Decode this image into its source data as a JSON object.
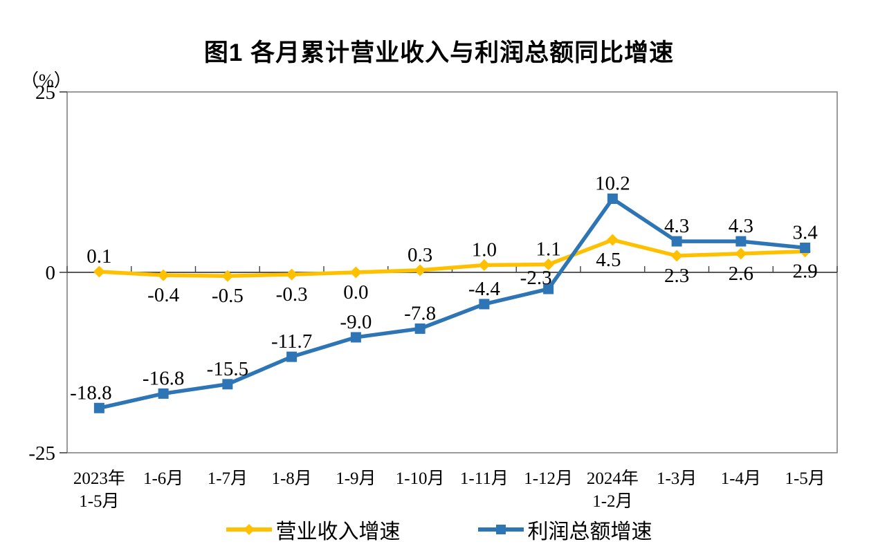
{
  "chart_data": {
    "type": "line",
    "title": "图1  各月累计营业收入与利润总额同比增速",
    "ylabel": "（%）",
    "ylim": [
      -25,
      25
    ],
    "yticks": [
      25,
      0,
      -25
    ],
    "grid": false,
    "legend_position": "bottom",
    "categories": [
      "2023年\n1-5月",
      "1-6月",
      "1-7月",
      "1-8月",
      "1-9月",
      "1-10月",
      "1-11月",
      "1-12月",
      "2024年\n1-2月",
      "1-3月",
      "1-4月",
      "1-5月"
    ],
    "series": [
      {
        "name": "营业收入增速",
        "color": "#FFC000",
        "marker": "diamond",
        "values": [
          0.1,
          -0.4,
          -0.5,
          -0.3,
          0.0,
          0.3,
          1.0,
          1.1,
          4.5,
          2.3,
          2.6,
          2.9
        ],
        "labels": [
          "0.1",
          "-0.4",
          "-0.5",
          "-0.3",
          "0.0",
          "0.3",
          "1.0",
          "1.1",
          "4.5",
          "2.3",
          "2.6",
          "2.9"
        ]
      },
      {
        "name": "利润总额增速",
        "color": "#2E75B6",
        "marker": "square",
        "values": [
          -18.8,
          -16.8,
          -15.5,
          -11.7,
          -9.0,
          -7.8,
          -4.4,
          -2.3,
          10.2,
          4.3,
          4.3,
          3.4
        ],
        "labels": [
          "-18.8",
          "-16.8",
          "-15.5",
          "-11.7",
          "-9.0",
          "-7.8",
          "-4.4",
          "-2.3",
          "10.2",
          "4.3",
          "4.3",
          "3.4"
        ]
      }
    ],
    "axis_colors": {
      "plot_border": "#808080",
      "zero_line": "#404040",
      "tick": "#404040",
      "text": "#000000"
    }
  }
}
